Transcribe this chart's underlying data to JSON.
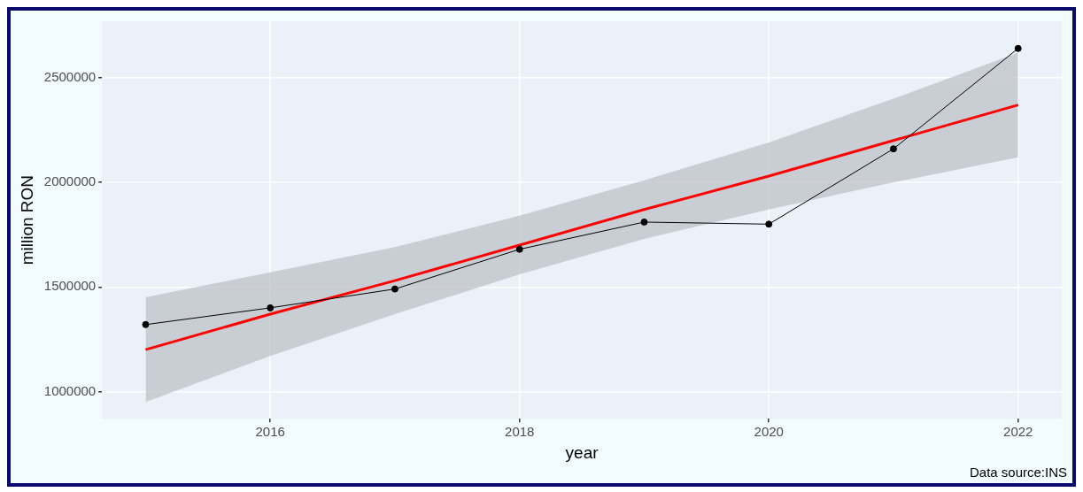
{
  "chart_data": {
    "type": "line",
    "xlabel": "year",
    "ylabel": "million RON",
    "annotations": [
      "Data source:INS"
    ],
    "x": [
      2015,
      2016,
      2017,
      2018,
      2019,
      2020,
      2021,
      2022
    ],
    "series": [
      {
        "color": "#000000",
        "marker": "circle",
        "values": [
          1320000,
          1400000,
          1490000,
          1680000,
          1810000,
          1800000,
          2160000,
          2640000
        ]
      },
      {
        "color": "#ff0000",
        "marker": "none",
        "values": [
          1200000,
          1370000,
          1530000,
          1700000,
          1870000,
          2030000,
          2200000,
          2370000
        ],
        "lower": [
          950000,
          1170000,
          1370000,
          1560000,
          1730000,
          1870000,
          2000000,
          2120000
        ],
        "upper": [
          1450000,
          1570000,
          1690000,
          1840000,
          2010000,
          2190000,
          2400000,
          2620000
        ]
      }
    ],
    "xlim": [
      2014.65,
      2022.35
    ],
    "xticks": [
      2016,
      2018,
      2020,
      2022
    ],
    "ylim": [
      870000,
      2770000
    ],
    "yticks": [
      1000000,
      1500000,
      2000000,
      2500000
    ],
    "grid": true,
    "legend": false
  }
}
